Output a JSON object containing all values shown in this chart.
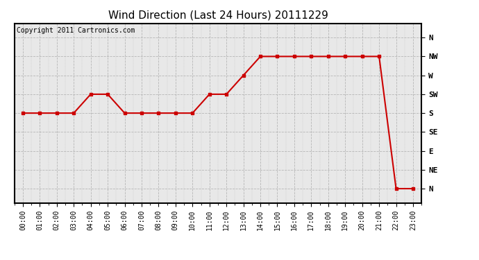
{
  "title": "Wind Direction (Last 24 Hours) 20111229",
  "copyright_text": "Copyright 2011 Cartronics.com",
  "line_color": "#cc0000",
  "bg_color": "#ffffff",
  "plot_bg_color": "#e8e8e8",
  "grid_color": "#aaaaaa",
  "ytick_labels": [
    "N",
    "NW",
    "W",
    "SW",
    "S",
    "SE",
    "E",
    "NE",
    "N"
  ],
  "ytick_values": [
    16,
    14,
    12,
    10,
    8,
    6,
    4,
    2,
    0
  ],
  "hours": [
    0,
    1,
    2,
    3,
    4,
    5,
    6,
    7,
    8,
    9,
    10,
    11,
    12,
    13,
    14,
    15,
    16,
    17,
    18,
    19,
    20,
    21,
    22,
    23
  ],
  "wind_values": [
    8,
    8,
    8,
    8,
    10,
    10,
    8,
    8,
    8,
    8,
    8,
    10,
    10,
    12,
    14,
    14,
    14,
    14,
    14,
    14,
    14,
    14,
    0,
    0
  ],
  "marker": "s",
  "marker_size": 3,
  "line_width": 1.5,
  "title_fontsize": 11,
  "copyright_fontsize": 7,
  "tick_fontsize": 7,
  "ytick_fontsize": 8
}
